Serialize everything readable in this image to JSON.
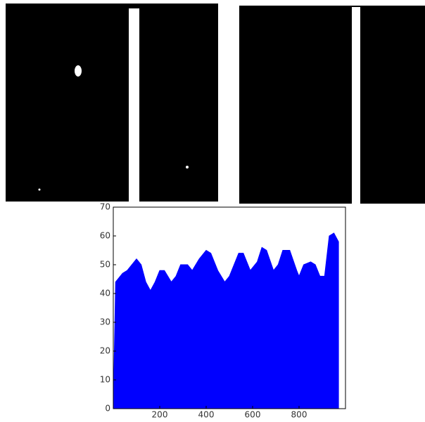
{
  "chart_data": {
    "type": "area",
    "color": "#0000ff",
    "x": [
      0,
      10,
      40,
      60,
      100,
      120,
      140,
      160,
      180,
      200,
      220,
      250,
      270,
      290,
      320,
      340,
      370,
      400,
      420,
      450,
      480,
      500,
      520,
      540,
      560,
      590,
      620,
      640,
      660,
      690,
      710,
      730,
      760,
      790,
      800,
      820,
      850,
      870,
      890,
      910,
      930,
      950,
      970
    ],
    "values": [
      0,
      44,
      47,
      48,
      52,
      50,
      44,
      41,
      44,
      48,
      48,
      44,
      46,
      50,
      50,
      48,
      52,
      55,
      54,
      48,
      44,
      46,
      50,
      54,
      54,
      48,
      51,
      56,
      55,
      48,
      50,
      55,
      55,
      48,
      46,
      50,
      51,
      50,
      46,
      46,
      60,
      61,
      58
    ],
    "xlim": [
      0,
      1000
    ],
    "ylim": [
      0,
      70
    ],
    "xticks": [
      200,
      400,
      600,
      800
    ],
    "yticks": [
      0,
      10,
      20,
      30,
      40,
      50,
      60,
      70
    ]
  }
}
